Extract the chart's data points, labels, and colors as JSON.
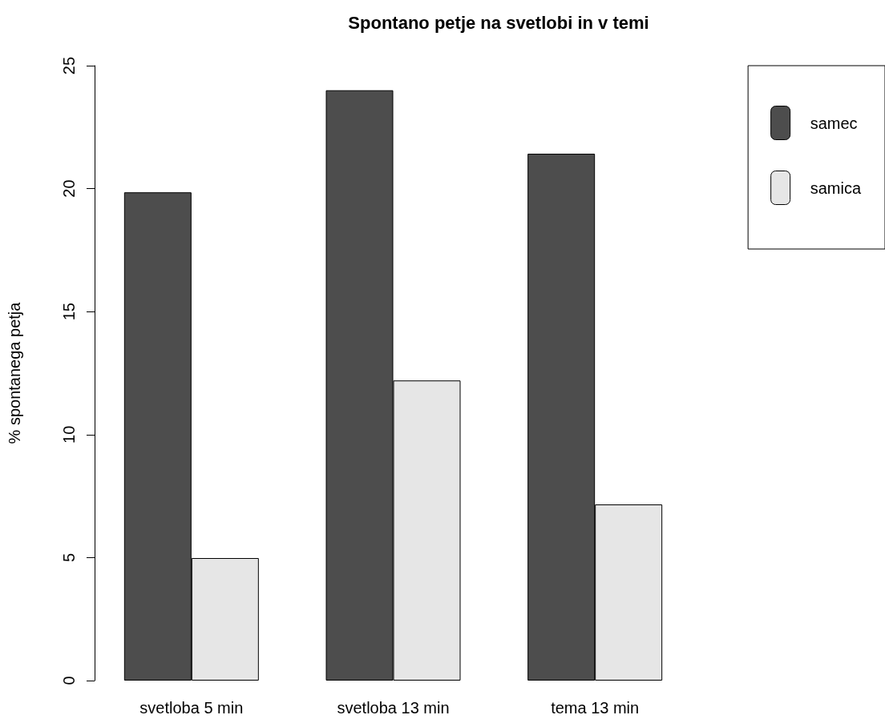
{
  "chart_data": {
    "type": "bar",
    "title": "Spontano petje na svetlobi in v temi",
    "ylabel": "% spontanega petja",
    "categories": [
      "svetloba 5 min",
      "svetloba 13 min",
      "tema 13 min"
    ],
    "series": [
      {
        "name": "samec",
        "color": "#4d4d4d",
        "values": [
          19.85,
          24.0,
          21.42
        ]
      },
      {
        "name": "samica",
        "color": "#e6e6e6",
        "values": [
          4.98,
          12.2,
          7.16
        ]
      }
    ],
    "ylim": [
      0,
      25
    ],
    "yticks": [
      0,
      5,
      10,
      15,
      20,
      25
    ],
    "grid": false,
    "legend": "top right"
  }
}
